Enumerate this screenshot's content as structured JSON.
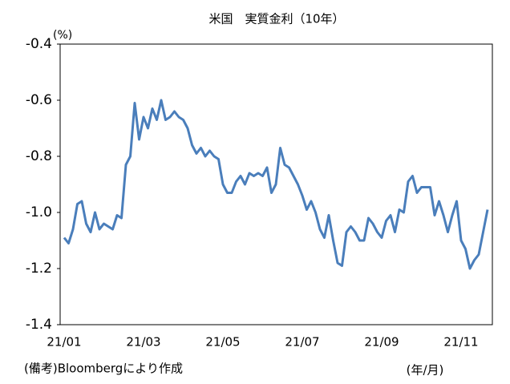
{
  "chart_data": {
    "type": "line",
    "title": "米国　実質金利（10年）",
    "y_unit": "(%)",
    "x_label": "(年/月)",
    "note": "(備考)Bloombergにより作成",
    "categories": [
      "21/01",
      null,
      null,
      null,
      null,
      null,
      null,
      null,
      null,
      null,
      null,
      null,
      null,
      null,
      null,
      null,
      null,
      null,
      "21/03",
      null,
      null,
      null,
      null,
      null,
      null,
      null,
      null,
      null,
      null,
      null,
      null,
      null,
      null,
      null,
      null,
      null,
      "21/05",
      null,
      null,
      null,
      null,
      null,
      null,
      null,
      null,
      null,
      null,
      null,
      null,
      null,
      null,
      null,
      null,
      null,
      "21/07",
      null,
      null,
      null,
      null,
      null,
      null,
      null,
      null,
      null,
      null,
      null,
      null,
      null,
      null,
      null,
      null,
      null,
      "21/09",
      null,
      null,
      null,
      null,
      null,
      null,
      null,
      null,
      null,
      null,
      null,
      null,
      null,
      null,
      null,
      null,
      null,
      "21/11",
      null,
      null,
      null,
      null,
      null,
      null
    ],
    "series": [
      {
        "name": "実質金利",
        "color": "#4a7ebb",
        "values": [
          -1.09,
          -1.11,
          -1.06,
          -0.97,
          -0.96,
          -1.04,
          -1.07,
          -1.0,
          -1.06,
          -1.04,
          -1.05,
          -1.06,
          -1.01,
          -1.02,
          -0.83,
          -0.8,
          -0.61,
          -0.74,
          -0.66,
          -0.7,
          -0.63,
          -0.67,
          -0.6,
          -0.67,
          -0.66,
          -0.64,
          -0.66,
          -0.67,
          -0.7,
          -0.76,
          -0.79,
          -0.77,
          -0.8,
          -0.78,
          -0.8,
          -0.81,
          -0.9,
          -0.93,
          -0.93,
          -0.89,
          -0.87,
          -0.9,
          -0.86,
          -0.87,
          -0.86,
          -0.87,
          -0.84,
          -0.93,
          -0.9,
          -0.77,
          -0.83,
          -0.84,
          -0.87,
          -0.9,
          -0.94,
          -0.99,
          -0.96,
          -1.0,
          -1.06,
          -1.09,
          -1.01,
          -1.1,
          -1.18,
          -1.19,
          -1.07,
          -1.05,
          -1.07,
          -1.1,
          -1.1,
          -1.02,
          -1.04,
          -1.07,
          -1.09,
          -1.03,
          -1.01,
          -1.07,
          -0.99,
          -1.0,
          -0.89,
          -0.87,
          -0.93,
          -0.91,
          -0.91,
          -0.91,
          -1.01,
          -0.96,
          -1.01,
          -1.07,
          -1.01,
          -0.96,
          -1.1,
          -1.13,
          -1.2,
          -1.17,
          -1.15,
          -1.07,
          -0.99
        ]
      }
    ],
    "ylim": [
      -1.4,
      -0.4
    ],
    "yticks": [
      -0.4,
      -0.6,
      -0.8,
      {
        "value": -1,
        "label": "-1.0"
      },
      -1.2,
      -1.4
    ],
    "grid": false
  }
}
